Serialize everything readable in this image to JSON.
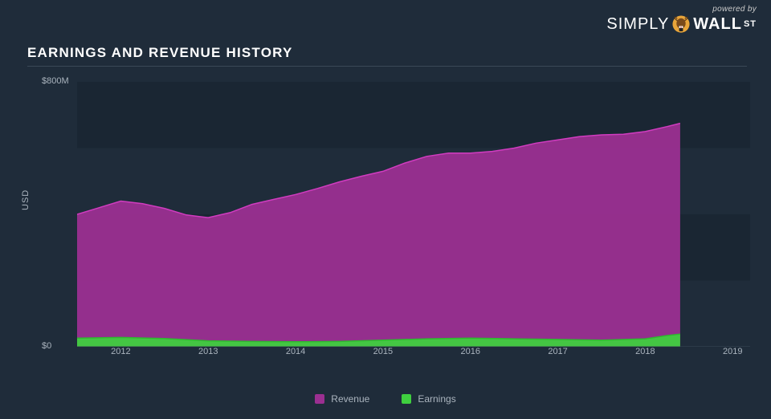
{
  "branding": {
    "powered_by": "powered by",
    "simply": "SIMPLY",
    "wall": "WALL",
    "st": "ST"
  },
  "title": "EARNINGS AND REVENUE HISTORY",
  "colors": {
    "background": "#1f2c3a",
    "grid_band": "#1a2633",
    "axis_text": "#aab4be",
    "revenue_fill": "#9b2f91",
    "revenue_stroke": "#d13cc0",
    "earnings_fill": "#3fcf3f",
    "earnings_stroke": "#2fb82f",
    "title_underline": "#3a4856"
  },
  "chart": {
    "type": "area",
    "y_axis_label": "USD",
    "y_ticks": [
      {
        "value": 0,
        "label": "$0"
      },
      {
        "value": 800,
        "label": "$800M"
      }
    ],
    "ylim": [
      0,
      800
    ],
    "x_ticks": [
      2012,
      2013,
      2014,
      2015,
      2016,
      2017,
      2018,
      2019
    ],
    "x_range": [
      2011.5,
      2019.2
    ],
    "series": [
      {
        "name": "Revenue",
        "color_fill": "#9b2f91",
        "color_stroke": "#d13cc0",
        "points": [
          {
            "x": 2011.5,
            "y": 400
          },
          {
            "x": 2011.75,
            "y": 420
          },
          {
            "x": 2012.0,
            "y": 440
          },
          {
            "x": 2012.25,
            "y": 432
          },
          {
            "x": 2012.5,
            "y": 418
          },
          {
            "x": 2012.75,
            "y": 398
          },
          {
            "x": 2013.0,
            "y": 390
          },
          {
            "x": 2013.25,
            "y": 405
          },
          {
            "x": 2013.5,
            "y": 430
          },
          {
            "x": 2013.75,
            "y": 445
          },
          {
            "x": 2014.0,
            "y": 460
          },
          {
            "x": 2014.25,
            "y": 478
          },
          {
            "x": 2014.5,
            "y": 498
          },
          {
            "x": 2014.75,
            "y": 515
          },
          {
            "x": 2015.0,
            "y": 530
          },
          {
            "x": 2015.25,
            "y": 555
          },
          {
            "x": 2015.5,
            "y": 575
          },
          {
            "x": 2015.75,
            "y": 585
          },
          {
            "x": 2016.0,
            "y": 585
          },
          {
            "x": 2016.25,
            "y": 590
          },
          {
            "x": 2016.5,
            "y": 600
          },
          {
            "x": 2016.75,
            "y": 615
          },
          {
            "x": 2017.0,
            "y": 625
          },
          {
            "x": 2017.25,
            "y": 635
          },
          {
            "x": 2017.5,
            "y": 640
          },
          {
            "x": 2017.75,
            "y": 642
          },
          {
            "x": 2018.0,
            "y": 650
          },
          {
            "x": 2018.25,
            "y": 665
          },
          {
            "x": 2018.4,
            "y": 675
          }
        ]
      },
      {
        "name": "Earnings",
        "color_fill": "#3fcf3f",
        "color_stroke": "#2fb82f",
        "points": [
          {
            "x": 2011.5,
            "y": 26
          },
          {
            "x": 2012.0,
            "y": 28
          },
          {
            "x": 2012.5,
            "y": 25
          },
          {
            "x": 2013.0,
            "y": 18
          },
          {
            "x": 2013.5,
            "y": 16
          },
          {
            "x": 2014.0,
            "y": 15
          },
          {
            "x": 2014.5,
            "y": 16
          },
          {
            "x": 2015.0,
            "y": 20
          },
          {
            "x": 2015.5,
            "y": 24
          },
          {
            "x": 2016.0,
            "y": 26
          },
          {
            "x": 2016.5,
            "y": 24
          },
          {
            "x": 2017.0,
            "y": 22
          },
          {
            "x": 2017.5,
            "y": 20
          },
          {
            "x": 2018.0,
            "y": 24
          },
          {
            "x": 2018.25,
            "y": 34
          },
          {
            "x": 2018.4,
            "y": 38
          }
        ]
      }
    ],
    "legend_position": "bottom-center",
    "grid_bands_between_y": [
      0,
      200,
      400,
      600,
      800
    ]
  }
}
